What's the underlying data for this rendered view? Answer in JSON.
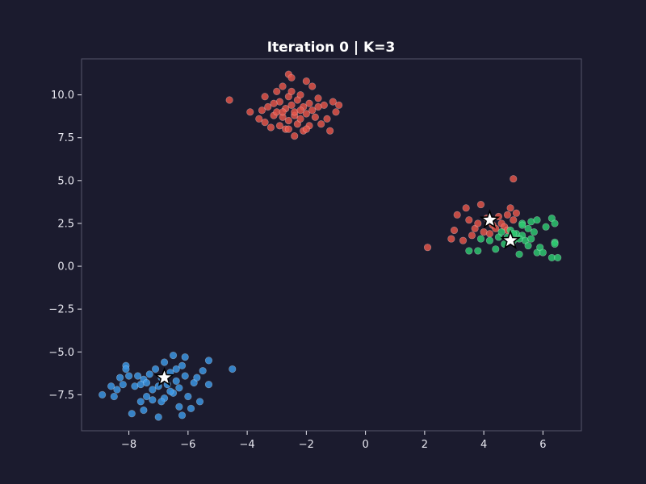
{
  "chart_data": {
    "type": "scatter",
    "title": "Iteration 0  |  K=3",
    "xlabel": "",
    "ylabel": "",
    "xlim": [
      -9.6,
      7.3
    ],
    "ylim": [
      -9.6,
      12.1
    ],
    "xticks": [
      -8,
      -6,
      -4,
      -2,
      0,
      2,
      4,
      6
    ],
    "xtick_labels": [
      "−8",
      "−6",
      "−4",
      "−2",
      "0",
      "2",
      "4",
      "6"
    ],
    "yticks": [
      -7.5,
      -5.0,
      -2.5,
      0.0,
      2.5,
      5.0,
      7.5,
      10.0
    ],
    "ytick_labels": [
      "−7.5",
      "−5.0",
      "−2.5",
      "0.0",
      "2.5",
      "5.0",
      "7.5",
      "10.0"
    ],
    "grid": false,
    "legend": "none",
    "colors": {
      "background": "#1b1b2e",
      "axes_frame": "#55556a",
      "text": "#e8e8f0",
      "red": "#e8574b",
      "blue": "#3d9ae8",
      "green": "#2ecc71",
      "centroid_fill": "#ffffff",
      "centroid_edge": "#000000"
    },
    "series": [
      {
        "color": "red",
        "points": [
          [
            -4.6,
            9.7
          ],
          [
            -3.9,
            9.0
          ],
          [
            -3.6,
            8.6
          ],
          [
            -3.5,
            9.1
          ],
          [
            -3.4,
            8.4
          ],
          [
            -3.3,
            9.3
          ],
          [
            -3.2,
            8.1
          ],
          [
            -3.1,
            8.8
          ],
          [
            -3.0,
            10.2
          ],
          [
            -3.0,
            9.0
          ],
          [
            -2.9,
            8.2
          ],
          [
            -2.9,
            9.6
          ],
          [
            -2.8,
            8.7
          ],
          [
            -2.8,
            10.5
          ],
          [
            -2.7,
            9.2
          ],
          [
            -2.7,
            8.0
          ],
          [
            -2.6,
            9.9
          ],
          [
            -2.6,
            8.5
          ],
          [
            -2.5,
            9.4
          ],
          [
            -2.5,
            10.2
          ],
          [
            -2.4,
            8.8
          ],
          [
            -2.4,
            7.6
          ],
          [
            -2.4,
            9.0
          ],
          [
            -2.3,
            8.3
          ],
          [
            -2.3,
            9.7
          ],
          [
            -2.2,
            10.0
          ],
          [
            -2.2,
            8.6
          ],
          [
            -2.1,
            9.3
          ],
          [
            -2.1,
            7.9
          ],
          [
            -2.0,
            10.8
          ],
          [
            -2.0,
            8.9
          ],
          [
            -1.9,
            9.5
          ],
          [
            -1.9,
            8.2
          ],
          [
            -1.8,
            10.5
          ],
          [
            -1.8,
            9.1
          ],
          [
            -1.7,
            8.7
          ],
          [
            -1.6,
            9.8
          ],
          [
            -1.5,
            8.3
          ],
          [
            -1.4,
            9.4
          ],
          [
            -1.3,
            8.6
          ],
          [
            -1.2,
            7.9
          ],
          [
            -1.1,
            9.6
          ],
          [
            -1.0,
            9.0
          ],
          [
            -0.9,
            9.4
          ],
          [
            -2.6,
            11.2
          ],
          [
            -2.5,
            11.0
          ],
          [
            -2.8,
            9.0
          ],
          [
            -3.1,
            9.5
          ],
          [
            -2.2,
            9.1
          ],
          [
            -2.6,
            8.0
          ],
          [
            -1.6,
            9.3
          ],
          [
            -3.4,
            9.9
          ],
          [
            -2.0,
            8.0
          ],
          [
            2.1,
            1.1
          ],
          [
            2.9,
            1.6
          ],
          [
            3.0,
            2.1
          ],
          [
            3.1,
            3.0
          ],
          [
            3.3,
            1.5
          ],
          [
            3.4,
            3.4
          ],
          [
            3.5,
            2.7
          ],
          [
            3.6,
            1.8
          ],
          [
            3.7,
            2.2
          ],
          [
            3.8,
            2.5
          ],
          [
            3.9,
            3.6
          ],
          [
            4.0,
            2.0
          ],
          [
            4.1,
            2.8
          ],
          [
            4.2,
            1.9
          ],
          [
            4.3,
            2.4
          ],
          [
            4.4,
            2.2
          ],
          [
            4.5,
            2.9
          ],
          [
            4.6,
            2.5
          ],
          [
            4.7,
            2.3
          ],
          [
            4.8,
            3.0
          ],
          [
            4.9,
            3.4
          ],
          [
            5.0,
            2.7
          ],
          [
            5.1,
            3.1
          ],
          [
            5.0,
            5.1
          ],
          [
            4.2,
            2.6
          ],
          [
            4.8,
            2.1
          ]
        ]
      },
      {
        "color": "blue",
        "points": [
          [
            -8.9,
            -7.5
          ],
          [
            -8.6,
            -7.0
          ],
          [
            -8.5,
            -7.6
          ],
          [
            -8.4,
            -7.2
          ],
          [
            -8.3,
            -6.5
          ],
          [
            -8.2,
            -6.9
          ],
          [
            -8.1,
            -5.8
          ],
          [
            -8.0,
            -6.4
          ],
          [
            -7.9,
            -8.6
          ],
          [
            -7.8,
            -7.0
          ],
          [
            -7.7,
            -6.4
          ],
          [
            -7.6,
            -7.9
          ],
          [
            -7.5,
            -8.4
          ],
          [
            -7.5,
            -6.6
          ],
          [
            -7.4,
            -7.6
          ],
          [
            -7.3,
            -6.3
          ],
          [
            -7.2,
            -7.2
          ],
          [
            -7.1,
            -6.0
          ],
          [
            -7.0,
            -8.8
          ],
          [
            -7.0,
            -7.0
          ],
          [
            -6.9,
            -6.5
          ],
          [
            -6.8,
            -7.7
          ],
          [
            -6.8,
            -5.6
          ],
          [
            -6.7,
            -6.9
          ],
          [
            -6.6,
            -6.2
          ],
          [
            -6.5,
            -7.4
          ],
          [
            -6.5,
            -5.2
          ],
          [
            -6.4,
            -6.7
          ],
          [
            -6.3,
            -8.2
          ],
          [
            -6.3,
            -7.1
          ],
          [
            -6.2,
            -5.8
          ],
          [
            -6.1,
            -6.4
          ],
          [
            -6.0,
            -7.6
          ],
          [
            -5.9,
            -8.3
          ],
          [
            -5.8,
            -6.8
          ],
          [
            -5.7,
            -6.5
          ],
          [
            -5.6,
            -7.9
          ],
          [
            -5.5,
            -6.1
          ],
          [
            -5.3,
            -5.5
          ],
          [
            -5.3,
            -6.9
          ],
          [
            -4.5,
            -6.0
          ],
          [
            -7.6,
            -6.9
          ],
          [
            -7.2,
            -7.8
          ],
          [
            -6.6,
            -7.3
          ],
          [
            -6.2,
            -8.7
          ],
          [
            -6.1,
            -5.3
          ],
          [
            -7.4,
            -6.8
          ],
          [
            -6.9,
            -7.9
          ],
          [
            -8.1,
            -6.0
          ],
          [
            -6.4,
            -6.0
          ]
        ]
      },
      {
        "color": "green",
        "points": [
          [
            3.5,
            0.9
          ],
          [
            3.8,
            0.9
          ],
          [
            3.9,
            1.6
          ],
          [
            4.2,
            1.5
          ],
          [
            4.4,
            1.0
          ],
          [
            4.5,
            1.7
          ],
          [
            4.6,
            2.0
          ],
          [
            4.7,
            1.3
          ],
          [
            4.8,
            1.7
          ],
          [
            4.9,
            2.1
          ],
          [
            5.0,
            1.5
          ],
          [
            5.1,
            1.9
          ],
          [
            5.2,
            0.7
          ],
          [
            5.3,
            1.8
          ],
          [
            5.3,
            2.5
          ],
          [
            5.4,
            1.5
          ],
          [
            5.5,
            2.2
          ],
          [
            5.5,
            1.2
          ],
          [
            5.6,
            2.6
          ],
          [
            5.7,
            2.0
          ],
          [
            5.8,
            2.7
          ],
          [
            5.8,
            0.8
          ],
          [
            5.9,
            1.1
          ],
          [
            6.0,
            0.8
          ],
          [
            6.1,
            2.3
          ],
          [
            6.3,
            2.8
          ],
          [
            6.3,
            0.5
          ],
          [
            6.4,
            2.5
          ],
          [
            6.4,
            1.4
          ],
          [
            6.5,
            0.5
          ],
          [
            5.3,
            2.4
          ],
          [
            5.2,
            1.6
          ],
          [
            5.6,
            1.6
          ],
          [
            5.0,
            1.9
          ],
          [
            6.4,
            1.3
          ]
        ]
      }
    ],
    "centroids": [
      {
        "x": -6.8,
        "y": -6.5,
        "color": "blue"
      },
      {
        "x": 4.2,
        "y": 2.7,
        "color": "red"
      },
      {
        "x": 4.9,
        "y": 1.5,
        "color": "green"
      }
    ]
  }
}
